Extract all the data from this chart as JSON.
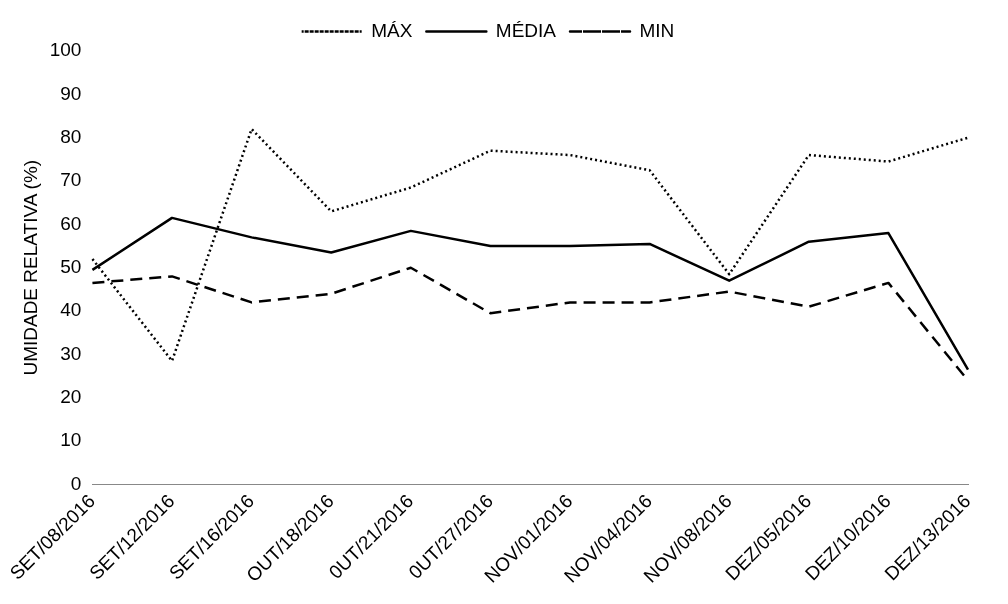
{
  "chart_data": {
    "type": "line",
    "ylabel": "UMIDADE RELATIVA (%)",
    "categories": [
      "SET/08/2016",
      "SET/12/2016",
      "SET/16/2016",
      "OUT/18/2016",
      "0UT/21/2016",
      "0UT/27/2016",
      "NOV/01/2016",
      "NOV/04/2016",
      "NOV/08/2016",
      "DEZ/05/2016",
      "DEZ/10/2016",
      "DEZ/13/2016"
    ],
    "series": [
      {
        "name": "MÁX",
        "color": "#000000",
        "line_style": "dotted",
        "values": [
          52,
          28.5,
          82,
          63,
          68.5,
          77,
          76,
          72.5,
          48.5,
          76,
          74.5,
          80
        ]
      },
      {
        "name": "MÉDIA",
        "color": "#000000",
        "line_style": "solid",
        "values": [
          49.5,
          61.5,
          57,
          53.5,
          58.5,
          55,
          55,
          55.5,
          47,
          56,
          58,
          26.5
        ]
      },
      {
        "name": "MIN",
        "color": "#000000",
        "line_style": "dashed",
        "values": [
          46.5,
          48,
          42,
          44,
          50,
          39.5,
          42,
          42,
          44.5,
          41,
          46.5,
          24
        ]
      }
    ],
    "ylim": [
      0,
      100
    ],
    "yticks": [
      0,
      10,
      20,
      30,
      40,
      50,
      60,
      70,
      80,
      90,
      100
    ],
    "grid": false,
    "legend": "top",
    "marker": "none"
  }
}
